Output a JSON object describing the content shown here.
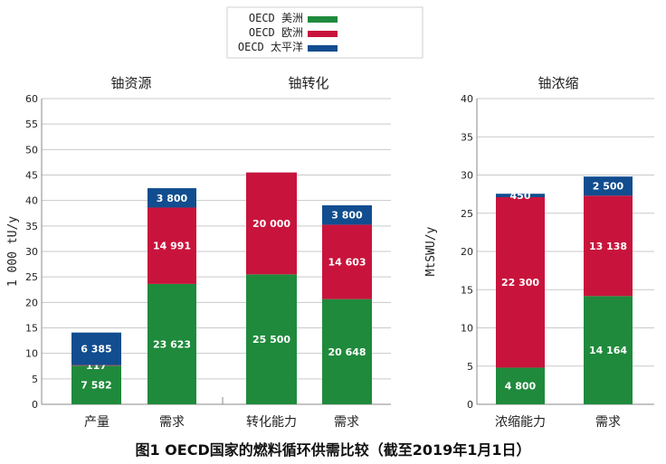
{
  "figure_caption": "图1 OECD国家的燃料循环供需比较（截至2019年1月1日）",
  "legend": {
    "items": [
      {
        "label": "OECD 美洲",
        "color": "#1f8a3c"
      },
      {
        "label": "OECD 欧洲",
        "color": "#c8143c"
      },
      {
        "label": "OECD 太平洋",
        "color": "#114d8f"
      }
    ]
  },
  "chart_data": [
    {
      "type": "bar",
      "stacked": true,
      "ylabel": "1 000 tU/y",
      "ylim": [
        0,
        60
      ],
      "yticks": [
        0,
        5,
        10,
        15,
        20,
        25,
        30,
        35,
        40,
        45,
        50,
        55,
        60
      ],
      "grid": true,
      "groups": [
        {
          "title": "铀资源",
          "categories": [
            "产量",
            "需求"
          ]
        },
        {
          "title": "铀转化",
          "categories": [
            "转化能力",
            "需求"
          ]
        }
      ],
      "categories": [
        "产量",
        "需求",
        "转化能力",
        "需求"
      ],
      "series": [
        {
          "name": "OECD 美洲",
          "color": "#1f8a3c",
          "values": [
            7.582,
            23.623,
            25.5,
            20.648
          ],
          "labels": [
            "7 582",
            "23 623",
            "25 500",
            "20 648"
          ]
        },
        {
          "name": "OECD 欧洲",
          "color": "#c8143c",
          "values": [
            0.117,
            14.991,
            20.0,
            14.603
          ],
          "labels": [
            "117",
            "14 991",
            "20 000",
            "14 603"
          ]
        },
        {
          "name": "OECD 太平洋",
          "color": "#114d8f",
          "values": [
            6.385,
            3.8,
            0,
            3.8
          ],
          "labels": [
            "6 385",
            "3 800",
            "",
            "3 800"
          ]
        }
      ]
    },
    {
      "type": "bar",
      "stacked": true,
      "title": "铀浓缩",
      "ylabel": "MtSWU/y",
      "ylim": [
        0,
        40
      ],
      "yticks": [
        0,
        5,
        10,
        15,
        20,
        25,
        30,
        35,
        40
      ],
      "grid": true,
      "categories": [
        "浓缩能力",
        "需求"
      ],
      "series": [
        {
          "name": "OECD 美洲",
          "color": "#1f8a3c",
          "values": [
            4.8,
            14.164
          ],
          "labels": [
            "4 800",
            "14 164"
          ]
        },
        {
          "name": "OECD 欧洲",
          "color": "#c8143c",
          "values": [
            22.3,
            13.138
          ],
          "labels": [
            "22 300",
            "13 138"
          ]
        },
        {
          "name": "OECD 太平洋",
          "color": "#114d8f",
          "values": [
            0.45,
            2.5
          ],
          "labels": [
            "450",
            "2 500"
          ]
        }
      ]
    }
  ]
}
